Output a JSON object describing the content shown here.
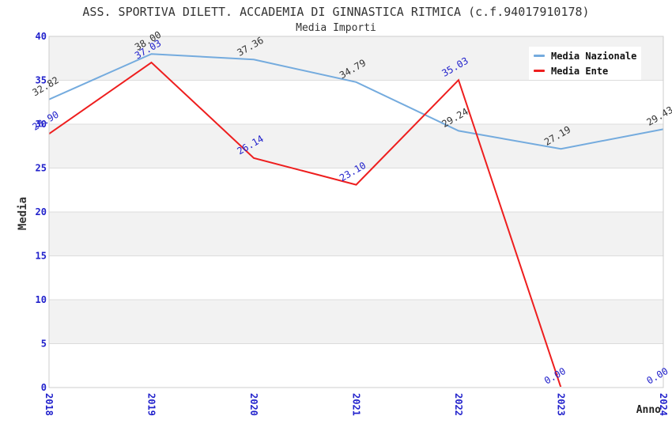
{
  "chart_data": {
    "type": "line",
    "title": "ASS. SPORTIVA DILETT. ACCADEMIA DI GINNASTICA RITMICA (c.f.94017910178)",
    "subtitle": "Media Importi",
    "xlabel": "Anno",
    "ylabel": "Media",
    "x": [
      2018,
      2019,
      2020,
      2021,
      2022,
      2023,
      2024
    ],
    "y_ticks": [
      0,
      5,
      10,
      15,
      20,
      25,
      30,
      35,
      40
    ],
    "ylim": [
      0,
      40
    ],
    "series": [
      {
        "name": "Media Nazionale",
        "color": "#74abde",
        "label_color": "#333333",
        "values": [
          32.82,
          38.0,
          37.36,
          34.79,
          29.24,
          27.19,
          29.43
        ]
      },
      {
        "name": "Media Ente",
        "color": "#ee1e1e",
        "label_color": "#2222cc",
        "values": [
          28.9,
          37.03,
          26.14,
          23.1,
          35.03,
          0.0,
          0.0
        ]
      }
    ],
    "legend_position": "top-right",
    "grid": true,
    "styles": {
      "tick_color": "#2222cc",
      "band_colors": [
        "#f2f2f2",
        "#ffffff"
      ],
      "grid_color": "#dcdcdc",
      "frame_color": "#cccccc"
    }
  }
}
